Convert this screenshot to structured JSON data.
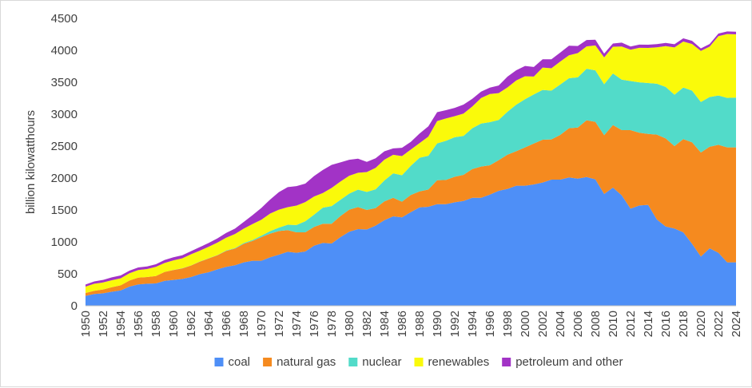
{
  "chart_data": {
    "type": "area",
    "stacked": true,
    "title": "",
    "xlabel": "",
    "ylabel": "billion kilowatthours",
    "xlim": [
      1950,
      2024
    ],
    "ylim": [
      0,
      4500
    ],
    "y_ticks": [
      0,
      500,
      1000,
      1500,
      2000,
      2500,
      3000,
      3500,
      4000,
      4500
    ],
    "x_tick_labels": [
      "1950",
      "1952",
      "1954",
      "1956",
      "1958",
      "1960",
      "1962",
      "1964",
      "1966",
      "1968",
      "1970",
      "1972",
      "1974",
      "1976",
      "1978",
      "1980",
      "1982",
      "1984",
      "1986",
      "1988",
      "1990",
      "1992",
      "1994",
      "1996",
      "1998",
      "2000",
      "2002",
      "2004",
      "2006",
      "2008",
      "2010",
      "2012",
      "2014",
      "2016",
      "2018",
      "2020",
      "2022",
      "2024"
    ],
    "grid": false,
    "legend_position": "bottom",
    "x": [
      1950,
      1951,
      1952,
      1953,
      1954,
      1955,
      1956,
      1957,
      1958,
      1959,
      1960,
      1961,
      1962,
      1963,
      1964,
      1965,
      1966,
      1967,
      1968,
      1969,
      1970,
      1971,
      1972,
      1973,
      1974,
      1975,
      1976,
      1977,
      1978,
      1979,
      1980,
      1981,
      1982,
      1983,
      1984,
      1985,
      1986,
      1987,
      1988,
      1989,
      1990,
      1991,
      1992,
      1993,
      1994,
      1995,
      1996,
      1997,
      1998,
      1999,
      2000,
      2001,
      2002,
      2003,
      2004,
      2005,
      2006,
      2007,
      2008,
      2009,
      2010,
      2011,
      2012,
      2013,
      2014,
      2015,
      2016,
      2017,
      2018,
      2019,
      2020,
      2021,
      2022,
      2023,
      2024
    ],
    "series": [
      {
        "name": "coal",
        "color": "#4e8ff7",
        "values": [
          155,
          185,
          195,
          220,
          240,
          300,
          335,
          345,
          350,
          390,
          405,
          420,
          450,
          495,
          525,
          570,
          610,
          635,
          680,
          705,
          705,
          760,
          800,
          845,
          830,
          850,
          940,
          985,
          975,
          1075,
          1160,
          1200,
          1195,
          1255,
          1340,
          1400,
          1385,
          1465,
          1540,
          1550,
          1590,
          1590,
          1620,
          1640,
          1690,
          1690,
          1740,
          1800,
          1830,
          1880,
          1880,
          1900,
          1930,
          1975,
          1975,
          2010,
          1990,
          2015,
          1980,
          1750,
          1850,
          1730,
          1520,
          1570,
          1580,
          1350,
          1240,
          1210,
          1150,
          970,
          770,
          900,
          830,
          680,
          680
        ]
      },
      {
        "name": "natural gas",
        "color": "#f58a1f",
        "values": [
          45,
          50,
          60,
          70,
          80,
          95,
          105,
          105,
          115,
          140,
          155,
          165,
          180,
          195,
          215,
          220,
          250,
          260,
          290,
          310,
          370,
          370,
          370,
          340,
          320,
          300,
          295,
          300,
          310,
          330,
          345,
          345,
          305,
          275,
          295,
          290,
          245,
          270,
          250,
          270,
          375,
          380,
          400,
          410,
          450,
          490,
          460,
          480,
          535,
          540,
          600,
          640,
          670,
          630,
          700,
          770,
          800,
          890,
          900,
          920,
          980,
          1020,
          1230,
          1140,
          1110,
          1330,
          1380,
          1290,
          1460,
          1590,
          1630,
          1590,
          1690,
          1800,
          1800
        ]
      },
      {
        "name": "nuclear",
        "color": "#52dbc9",
        "values": [
          0,
          0,
          0,
          0,
          0,
          0,
          0,
          0,
          0,
          0,
          1,
          2,
          2,
          3,
          3,
          4,
          6,
          8,
          13,
          14,
          22,
          38,
          54,
          83,
          114,
          173,
          191,
          251,
          276,
          255,
          251,
          273,
          283,
          294,
          328,
          384,
          414,
          455,
          527,
          529,
          577,
          613,
          619,
          610,
          640,
          673,
          675,
          629,
          673,
          728,
          754,
          769,
          780,
          764,
          789,
          782,
          787,
          806,
          806,
          799,
          807,
          790,
          769,
          789,
          797,
          797,
          806,
          805,
          807,
          809,
          790,
          778,
          772,
          775,
          780
        ]
      },
      {
        "name": "renewables",
        "color": "#fafa0a",
        "values": [
          100,
          110,
          110,
          110,
          110,
          115,
          120,
          125,
          145,
          140,
          150,
          155,
          175,
          170,
          180,
          195,
          200,
          220,
          225,
          250,
          250,
          275,
          280,
          275,
          305,
          300,
          285,
          230,
          285,
          285,
          280,
          265,
          310,
          335,
          325,
          290,
          300,
          255,
          230,
          300,
          350,
          350,
          330,
          350,
          340,
          400,
          440,
          420,
          380,
          380,
          360,
          280,
          350,
          350,
          360,
          360,
          380,
          350,
          390,
          420,
          420,
          520,
          490,
          540,
          550,
          570,
          640,
          740,
          720,
          730,
          800,
          790,
          930,
          1000,
          990
        ]
      },
      {
        "name": "petroleum and other",
        "color": "#a233c6",
        "values": [
          33,
          37,
          40,
          45,
          45,
          40,
          40,
          40,
          40,
          47,
          48,
          48,
          48,
          55,
          60,
          65,
          75,
          85,
          105,
          140,
          185,
          220,
          275,
          315,
          305,
          290,
          320,
          360,
          360,
          300,
          250,
          220,
          160,
          150,
          130,
          100,
          130,
          120,
          150,
          160,
          140,
          130,
          130,
          140,
          120,
          100,
          100,
          120,
          170,
          160,
          160,
          150,
          130,
          140,
          140,
          150,
          110,
          100,
          90,
          60,
          50,
          60,
          50,
          50,
          50,
          50,
          50,
          50,
          50,
          50,
          40,
          40,
          40,
          40,
          40
        ]
      }
    ]
  }
}
